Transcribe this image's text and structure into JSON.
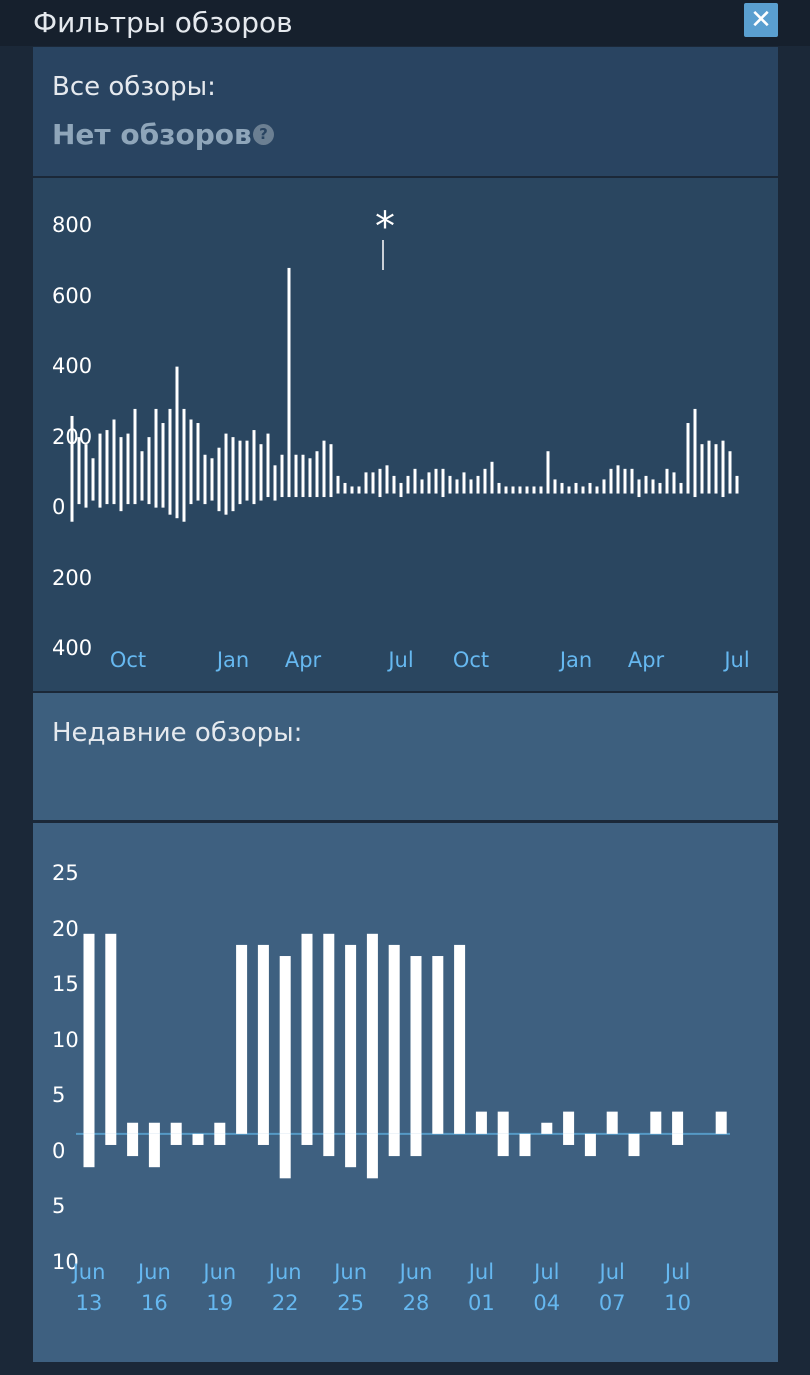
{
  "header": {
    "title": "Фильтры обзоров"
  },
  "all_reviews": {
    "label": "Все обзоры:",
    "summary": "Нет обзоров",
    "help": "?"
  },
  "recent_reviews": {
    "label": "Недавние обзоры:"
  },
  "chart_data": [
    {
      "type": "bar",
      "annotation": "*",
      "categories": [
        null,
        null,
        null,
        null,
        null,
        null,
        null,
        null,
        "Oct",
        null,
        null,
        null,
        null,
        null,
        null,
        null,
        null,
        null,
        null,
        null,
        null,
        null,
        null,
        "Jan",
        null,
        null,
        null,
        null,
        null,
        null,
        null,
        null,
        null,
        "Apr",
        null,
        null,
        null,
        null,
        null,
        null,
        null,
        null,
        null,
        null,
        null,
        null,
        null,
        "Jul",
        null,
        null,
        null,
        null,
        null,
        null,
        null,
        null,
        null,
        "Oct",
        null,
        null,
        null,
        null,
        null,
        null,
        null,
        null,
        null,
        null,
        null,
        null,
        null,
        null,
        "Jan",
        null,
        null,
        null,
        null,
        null,
        null,
        null,
        null,
        null,
        "Apr",
        null,
        null,
        null,
        null,
        null,
        null,
        null,
        null,
        null,
        null,
        null,
        null,
        "Jul"
      ],
      "series": [
        {
          "color": "#ffffff",
          "values": [
            210,
            150,
            130,
            90,
            160,
            170,
            200,
            150,
            160,
            230,
            110,
            150,
            230,
            190,
            230,
            350,
            230,
            200,
            190,
            100,
            90,
            120,
            160,
            150,
            140,
            140,
            170,
            130,
            160,
            70,
            100,
            630,
            100,
            100,
            90,
            110,
            140,
            130,
            40,
            20,
            10,
            10,
            50,
            50,
            60,
            70,
            40,
            20,
            40,
            60,
            30,
            50,
            60,
            60,
            40,
            30,
            50,
            30,
            40,
            60,
            80,
            20,
            10,
            10,
            10,
            10,
            10,
            10,
            110,
            30,
            20,
            10,
            20,
            10,
            20,
            10,
            30,
            60,
            70,
            60,
            60,
            30,
            40,
            30,
            20,
            60,
            50,
            20,
            190,
            230,
            130,
            140,
            130,
            140,
            110,
            40
          ]
        },
        {
          "color": "#ffffff",
          "values": [
            -90,
            -40,
            -50,
            -30,
            -50,
            -40,
            -40,
            -60,
            -40,
            -40,
            -30,
            -40,
            -50,
            -50,
            -70,
            -80,
            -90,
            -40,
            -30,
            -40,
            -30,
            -60,
            -70,
            -60,
            -40,
            -30,
            -40,
            -30,
            -20,
            -30,
            -20,
            -20,
            -20,
            -20,
            -20,
            -20,
            -20,
            -20,
            -10,
            -10,
            -10,
            -10,
            -10,
            -10,
            -20,
            -10,
            -10,
            -20,
            -10,
            -10,
            -10,
            -10,
            -10,
            -20,
            -10,
            -10,
            -10,
            -10,
            -10,
            -10,
            -10,
            -10,
            -10,
            -10,
            -10,
            -10,
            -10,
            -10,
            -10,
            -10,
            -10,
            -10,
            -10,
            -10,
            -10,
            -10,
            -10,
            -10,
            -10,
            -10,
            -10,
            -20,
            -10,
            -10,
            -10,
            -10,
            -10,
            -10,
            -10,
            -20,
            -10,
            -10,
            -10,
            -20,
            -10,
            -10
          ]
        }
      ],
      "ylim": [
        -400,
        800
      ],
      "yticks": [
        800,
        600,
        400,
        200,
        0,
        {
          "value": -200,
          "label": "200"
        },
        {
          "value": -400,
          "label": "400"
        }
      ]
    },
    {
      "type": "bar",
      "categories": [
        "Jun 13",
        null,
        null,
        "Jun 16",
        null,
        null,
        "Jun 19",
        null,
        null,
        "Jun 22",
        null,
        null,
        "Jun 25",
        null,
        null,
        "Jun 28",
        null,
        null,
        "Jul 01",
        null,
        null,
        "Jul 04",
        null,
        null,
        "Jul 07",
        null,
        null,
        "Jul 10",
        null,
        null
      ],
      "series": [
        {
          "color": "#ffffff",
          "values": [
            18,
            18,
            1,
            1,
            1,
            0,
            1,
            17,
            17,
            16,
            18,
            18,
            17,
            18,
            17,
            16,
            16,
            17,
            2,
            2,
            0,
            1,
            2,
            0,
            2,
            0,
            2,
            2,
            0,
            2
          ]
        },
        {
          "color": "#ffffff",
          "values": [
            -3,
            -1,
            -2,
            -3,
            -1,
            -1,
            -1,
            0,
            -1,
            -4,
            -1,
            -2,
            -3,
            -4,
            -2,
            -2,
            0,
            0,
            0,
            -2,
            -2,
            0,
            -1,
            -2,
            0,
            -2,
            0,
            -1,
            0,
            0
          ]
        }
      ],
      "ylim": [
        -10,
        25
      ],
      "yticks": [
        25,
        20,
        15,
        10,
        5,
        0,
        {
          "value": -5,
          "label": "5"
        },
        {
          "value": -10,
          "label": "10"
        }
      ]
    }
  ]
}
